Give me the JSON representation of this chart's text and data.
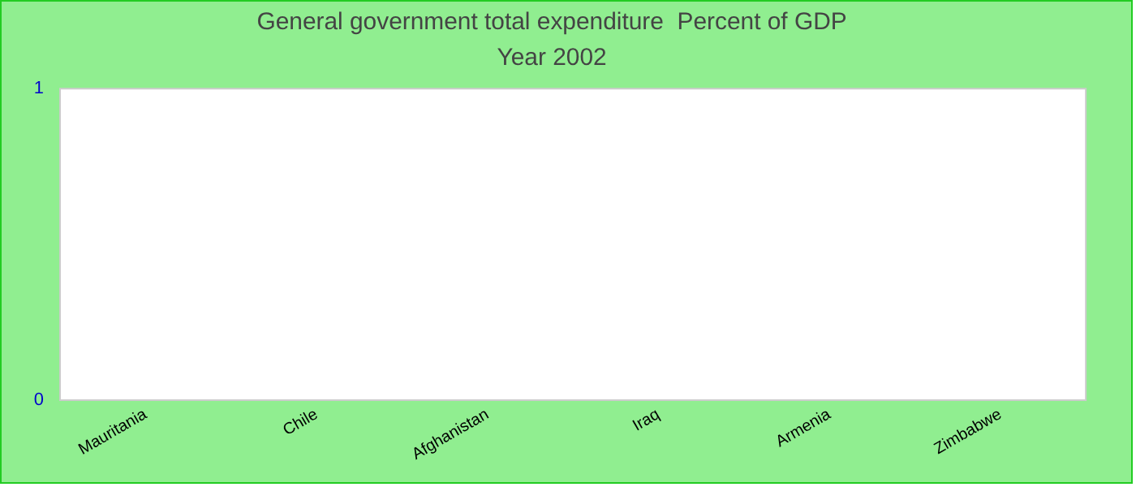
{
  "chart_data": {
    "type": "bar",
    "title": "General government total expenditure  Percent of GDP",
    "subtitle": "Year 2002",
    "categories": [
      "Mauritania",
      "Chile",
      "Afghanistan",
      "Iraq",
      "Armenia",
      "Zimbabwe"
    ],
    "values": [
      0,
      0,
      0,
      0,
      0,
      0
    ],
    "ylim": [
      0,
      1
    ],
    "yticks": [
      0,
      1
    ],
    "grid": false,
    "legend": false
  }
}
